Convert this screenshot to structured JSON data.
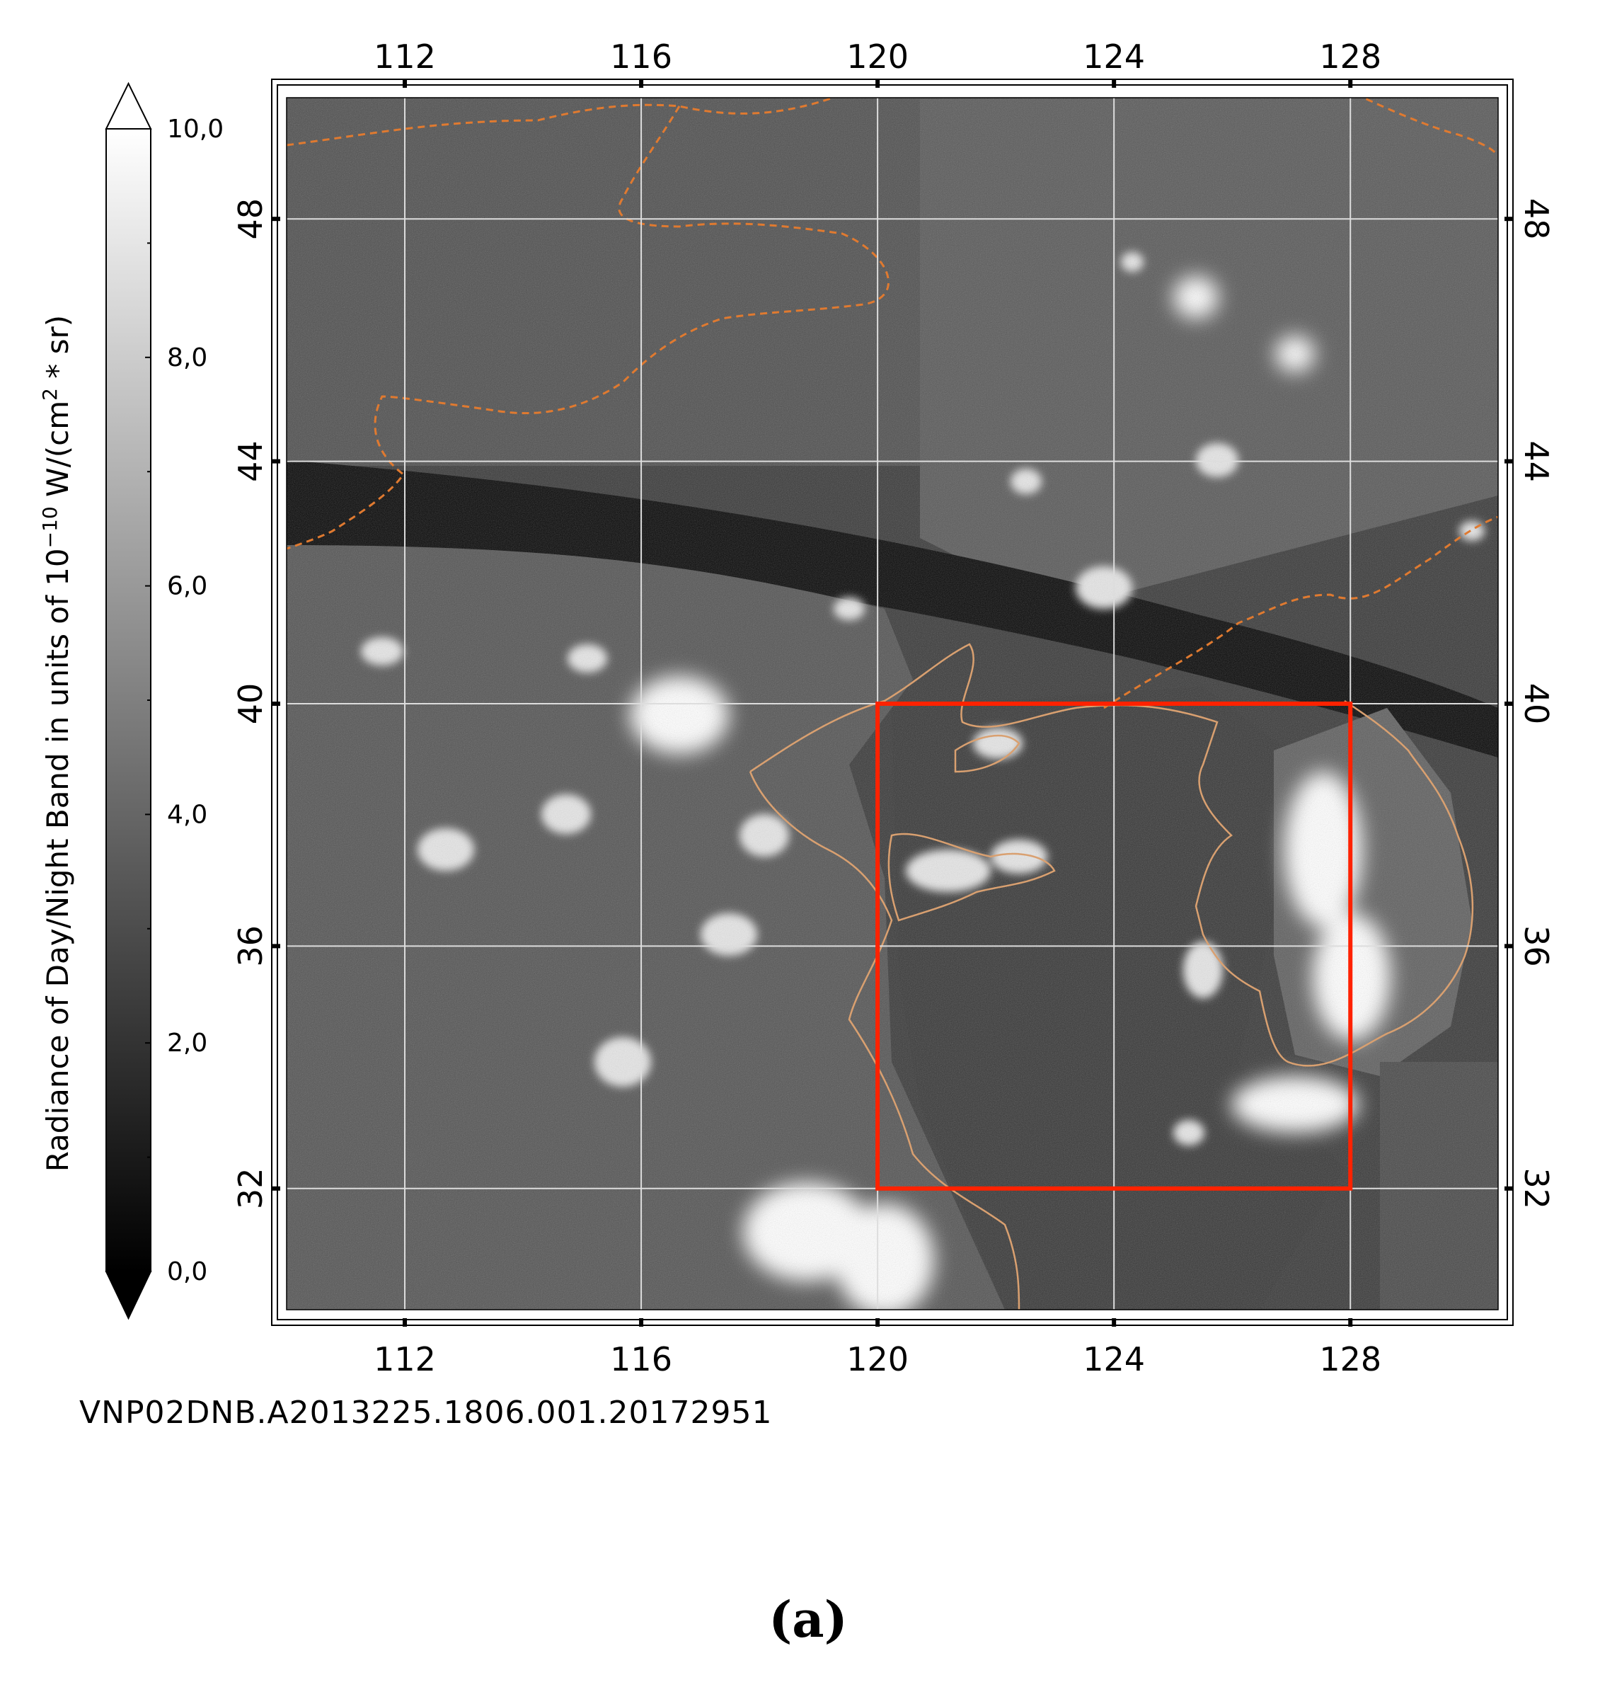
{
  "colorbar": {
    "title": "Radiance of Day/Night Band in units of 10",
    "title_exp": "−10",
    "title_rest": " W/(cm",
    "title_sq": "2",
    "title_end": " * sr)",
    "ticks": [
      "0,0",
      "2,0",
      "4,0",
      "6,0",
      "8,0",
      "10,0"
    ],
    "range": [
      0,
      10
    ],
    "colormap": [
      "#000000",
      "#ffffff"
    ]
  },
  "map": {
    "lon_ticks": [
      "112",
      "116",
      "120",
      "124",
      "128"
    ],
    "lat_ticks": [
      "48",
      "44",
      "40",
      "36",
      "32"
    ],
    "lon_values": [
      112,
      116,
      120,
      124,
      128
    ],
    "lat_values": [
      48,
      44,
      40,
      36,
      32
    ],
    "lon_range": [
      110,
      130.5
    ],
    "lat_range": [
      30,
      50
    ],
    "highlight_box": {
      "lon": [
        120,
        128
      ],
      "lat": [
        32,
        40
      ],
      "color": "#ff2200"
    },
    "coast_color": "#d9a070",
    "border_color": "#e07a30"
  },
  "granule_id": "VNP02DNB.A2013225.1806.001.20172951",
  "panel_label": "(a)"
}
